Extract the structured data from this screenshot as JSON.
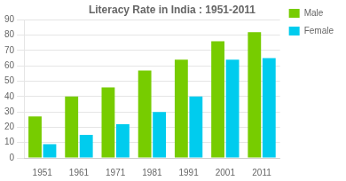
{
  "chart_data": {
    "type": "bar",
    "title": "Literacy Rate in India : 1951-2011",
    "categories": [
      "1951",
      "1961",
      "1971",
      "1981",
      "1991",
      "2001",
      "2011"
    ],
    "series": [
      {
        "name": "Male",
        "color": "#77cc00",
        "values": [
          27,
          40,
          46,
          57,
          64,
          76,
          82
        ]
      },
      {
        "name": "Female",
        "color": "#00ccee",
        "values": [
          9,
          15,
          22,
          30,
          40,
          64,
          65
        ]
      }
    ],
    "ylim": [
      0,
      90
    ],
    "yticks": [
      0,
      10,
      20,
      30,
      40,
      50,
      60,
      70,
      80,
      90
    ],
    "grid": true,
    "legend": "right"
  }
}
